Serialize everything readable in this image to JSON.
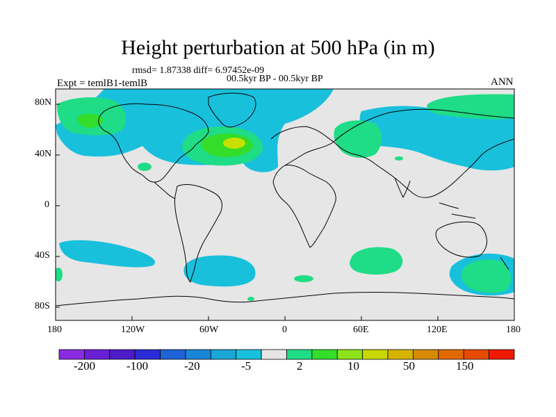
{
  "title": "Height perturbation at 500 hPa (in m)",
  "stats_text": "rmsd= 1.87338 diff= 6.97452e-09",
  "period_text": "00.5kyr BP - 00.5kyr BP",
  "experiment_text": "Expt = temlB1-temlB",
  "season": "ANN",
  "axes": {
    "lon_ticks": [
      "180",
      "120W",
      "60W",
      "0",
      "60E",
      "120E",
      "180"
    ],
    "lat_ticks": [
      "80N",
      "40N",
      "0",
      "40S",
      "80S"
    ]
  },
  "colorbar": {
    "colors": [
      "#8a2be2",
      "#6a1fd6",
      "#4b1cc8",
      "#2a2ad6",
      "#1f63d6",
      "#1a86d6",
      "#1aa6d6",
      "#19c0dc",
      "#e6e6e6",
      "#1fdc86",
      "#33dd2a",
      "#8ee21a",
      "#c8d800",
      "#d6b400",
      "#d68a00",
      "#e06a00",
      "#e84a00",
      "#f01a00"
    ],
    "labels": [
      "-200",
      "-100",
      "-20",
      "-5",
      "2",
      "10",
      "50",
      "150"
    ]
  },
  "colors": {
    "background": "#e6e6e6",
    "blue": "#19c0dc",
    "green": "#1fdc86",
    "lime": "#33dd2a",
    "yellow_green": "#c8e000"
  }
}
